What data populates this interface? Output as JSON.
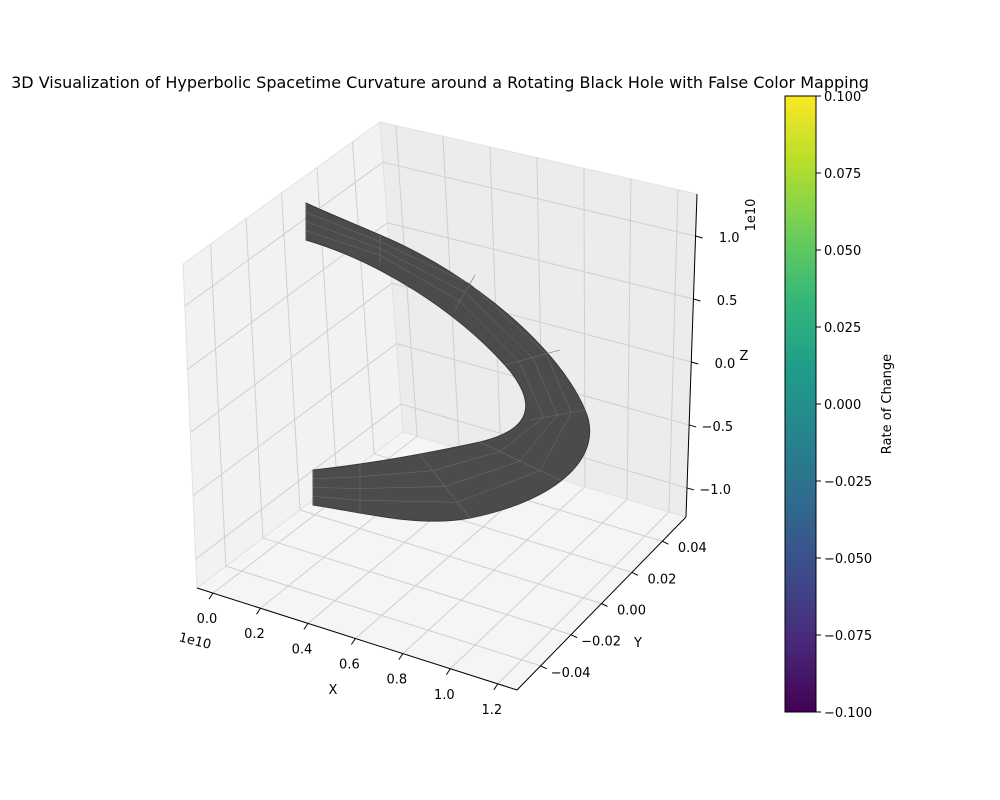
{
  "chart_data": {
    "type": "surface3d",
    "title": "3D Visualization of Hyperbolic Spacetime Curvature around a Rotating Black Hole with False Color Mapping",
    "x_axis": {
      "label": "X",
      "offset_label": "1e10",
      "ticks": [
        "0.0",
        "0.2",
        "0.4",
        "0.6",
        "0.8",
        "1.0",
        "1.2"
      ]
    },
    "y_axis": {
      "label": "Y",
      "ticks": [
        "−0.04",
        "−0.02",
        "0.00",
        "0.02",
        "0.04"
      ]
    },
    "z_axis": {
      "label": "Z",
      "offset_label": "1e10",
      "ticks": [
        "−1.0",
        "−0.5",
        "0.0",
        "0.5",
        "1.0"
      ]
    },
    "colorbar": {
      "label": "Rate of Change",
      "ticks": [
        "−0.100",
        "−0.075",
        "−0.050",
        "−0.025",
        "0.000",
        "0.025",
        "0.050",
        "0.075",
        "0.100"
      ],
      "range": [
        -0.1,
        0.1
      ],
      "colormap": [
        "#440154",
        "#482878",
        "#3e4989",
        "#31688e",
        "#26828e",
        "#1f9e89",
        "#35b779",
        "#6ece58",
        "#b5de2b",
        "#fde725"
      ]
    },
    "surface": {
      "shape": "hyperbola band",
      "color": "#4a4a4a",
      "edge_color": "#6e6e6e",
      "x_range": [
        0.0,
        1.2
      ],
      "y_range": [
        -0.05,
        0.05
      ],
      "z_range": [
        -1.2,
        1.2
      ]
    },
    "grid": true
  }
}
